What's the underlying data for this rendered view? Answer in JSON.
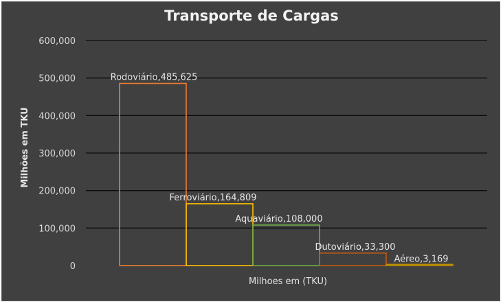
{
  "chart_data": {
    "type": "bar",
    "title": "Transporte de Cargas",
    "xlabel": "Milhoes em (TKU)",
    "ylabel": "Milhões em TKU",
    "ylim": [
      0,
      600000
    ],
    "yticks": [
      0,
      100000,
      200000,
      300000,
      400000,
      500000,
      600000
    ],
    "ytick_labels": [
      "0",
      "100,000",
      "200,000",
      "300,000",
      "400,000",
      "500,000",
      "600,000"
    ],
    "grid": true,
    "categories": [
      "Rodoviário",
      "Ferroviário",
      "Aquaviário",
      "Dutoviário",
      "Aéreo"
    ],
    "values": [
      485625,
      164809,
      108000,
      33300,
      3169
    ],
    "data_labels": [
      "Rodoviário,485,625",
      "Ferroviário,164,809",
      "Aquaviário,108,000",
      "Dutoviário,33,300",
      "Aéreo,3,169"
    ],
    "colors": [
      "#ed7d31",
      "#ffc000",
      "#70ad47",
      "#c55a11",
      "#bf9000"
    ]
  }
}
